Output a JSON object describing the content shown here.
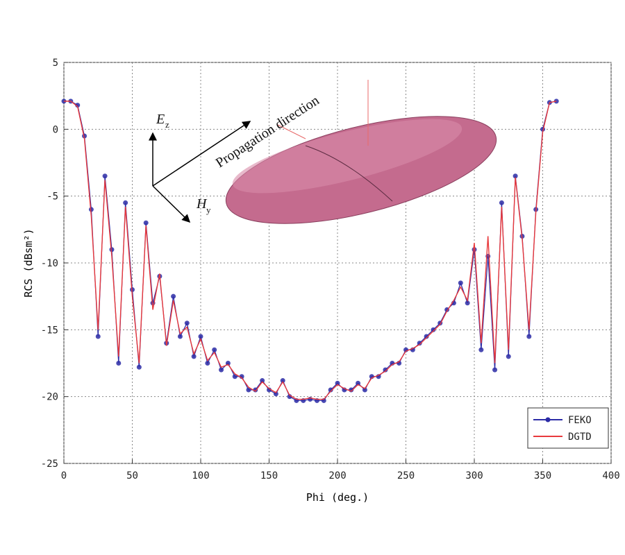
{
  "chart_data": {
    "type": "line",
    "xlabel": "Phi (deg.)",
    "ylabel": "RCS (dBsm²)",
    "annotations": {
      "propagation": "Propagation direction",
      "e_field": "E",
      "e_sub": "z",
      "h_field": "H",
      "h_sub": "y"
    },
    "x": [
      0,
      5,
      10,
      15,
      20,
      25,
      30,
      35,
      40,
      45,
      50,
      55,
      60,
      65,
      70,
      75,
      80,
      85,
      90,
      95,
      100,
      105,
      110,
      115,
      120,
      125,
      130,
      135,
      140,
      145,
      150,
      155,
      160,
      165,
      170,
      175,
      180,
      185,
      190,
      195,
      200,
      205,
      210,
      215,
      220,
      225,
      230,
      235,
      240,
      245,
      250,
      255,
      260,
      265,
      270,
      275,
      280,
      285,
      290,
      295,
      300,
      305,
      310,
      315,
      320,
      325,
      330,
      335,
      340,
      345,
      350,
      355,
      360
    ],
    "series": [
      {
        "name": "FEKO",
        "color": "#2b2ba6",
        "values": [
          2.1,
          2.1,
          1.8,
          -0.5,
          -6,
          -15.5,
          -3.5,
          -9,
          -17.5,
          -5.5,
          -12,
          -17.8,
          -7,
          -13,
          -11,
          -16,
          -12.5,
          -15.5,
          -14.5,
          -17,
          -15.5,
          -17.5,
          -16.5,
          -18,
          -17.5,
          -18.5,
          -18.5,
          -19.5,
          -19.5,
          -18.8,
          -19.5,
          -19.8,
          -18.8,
          -20,
          -20.3,
          -20.3,
          -20.2,
          -20.3,
          -20.3,
          -19.5,
          -19,
          -19.5,
          -19.5,
          -19,
          -19.5,
          -18.5,
          -18.5,
          -18,
          -17.5,
          -17.5,
          -16.5,
          -16.5,
          -16,
          -15.5,
          -15,
          -14.5,
          -13.5,
          -13,
          -11.5,
          -13,
          -9,
          -16.5,
          -9.5,
          -18,
          -5.5,
          -17,
          -3.5,
          -8,
          -15.5,
          -6,
          0,
          2,
          2.1
        ]
      },
      {
        "name": "DGTD",
        "color": "#e8393c",
        "values": [
          2.1,
          2.1,
          1.7,
          -0.7,
          -6.5,
          -15,
          -3.8,
          -9.5,
          -17,
          -5.8,
          -12.5,
          -17.5,
          -7.2,
          -13.5,
          -10.8,
          -16.2,
          -12.8,
          -15.3,
          -14.8,
          -16.8,
          -15.7,
          -17.3,
          -16.7,
          -17.8,
          -17.6,
          -18.3,
          -18.6,
          -19.3,
          -19.6,
          -18.9,
          -19.4,
          -19.7,
          -18.9,
          -19.9,
          -20.2,
          -20.2,
          -20.1,
          -20.2,
          -20.2,
          -19.6,
          -19.1,
          -19.4,
          -19.6,
          -19.1,
          -19.4,
          -18.6,
          -18.4,
          -18.1,
          -17.6,
          -17.4,
          -16.6,
          -16.4,
          -16.1,
          -15.6,
          -15.1,
          -14.6,
          -13.6,
          -12.8,
          -11.8,
          -12.8,
          -8.5,
          -16,
          -8,
          -17.5,
          -5.8,
          -16.5,
          -3.6,
          -8.2,
          -15,
          -6.2,
          -0.2,
          2,
          2.1
        ]
      }
    ],
    "xlim": [
      0,
      400
    ],
    "xticks": [
      0,
      50,
      100,
      150,
      200,
      250,
      300,
      350,
      400
    ],
    "ylim": [
      -25,
      5
    ],
    "yticks": [
      -25,
      -20,
      -15,
      -10,
      -5,
      0,
      5
    ],
    "grid": true,
    "legend": "lower right"
  }
}
